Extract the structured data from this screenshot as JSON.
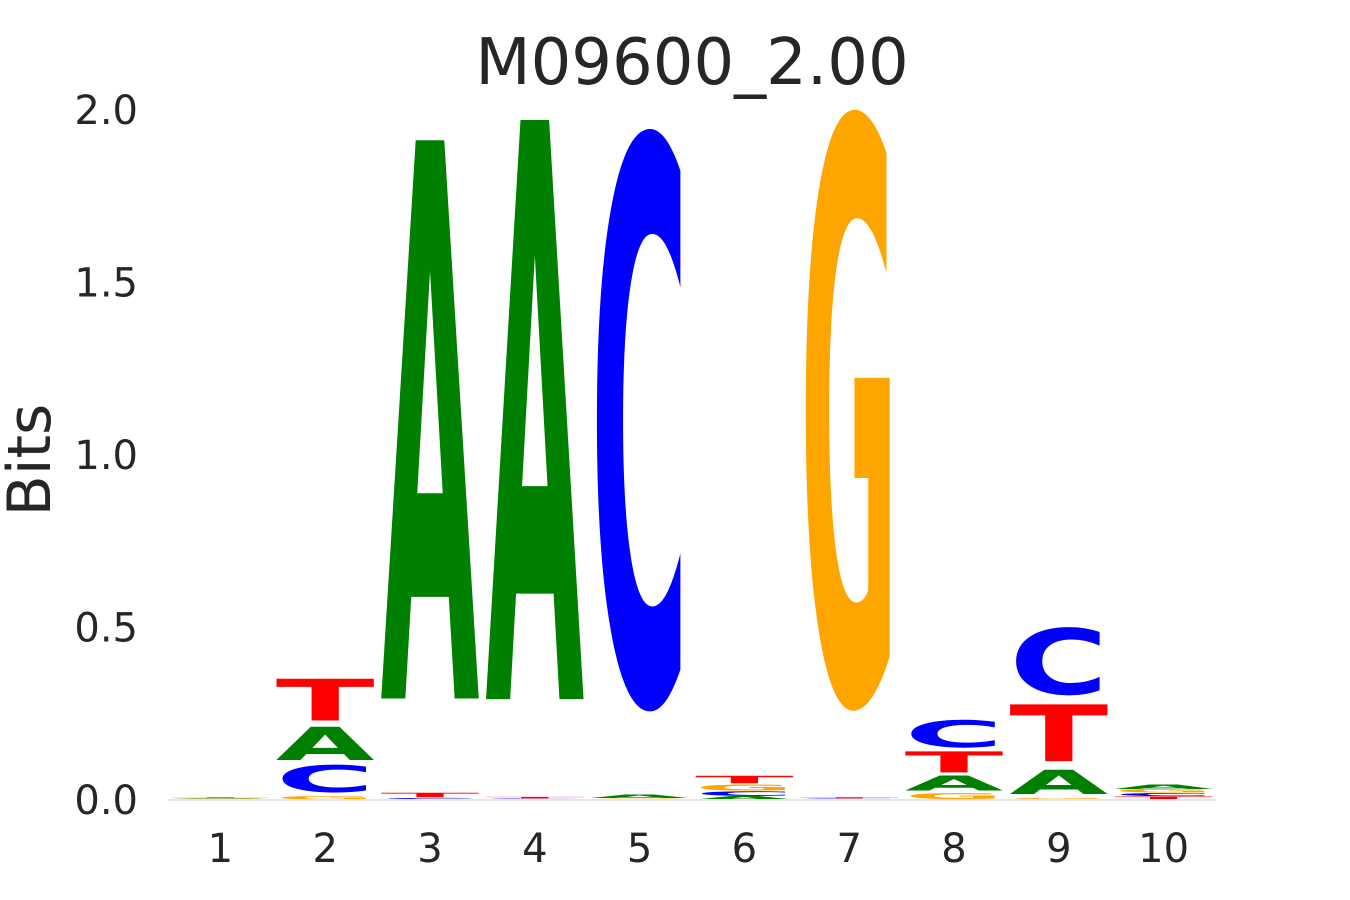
{
  "chart_data": {
    "type": "sequence-logo",
    "title": "M09600_2.00",
    "xlabel": "",
    "ylabel": "Bits",
    "ylim": [
      0,
      2
    ],
    "y_ticks": [
      "0.0",
      "0.5",
      "1.0",
      "1.5",
      "2.0"
    ],
    "x_ticks": [
      "1",
      "2",
      "3",
      "4",
      "5",
      "6",
      "7",
      "8",
      "9",
      "10"
    ],
    "grid": false,
    "colors": {
      "A": "#008000",
      "C": "#0000ff",
      "G": "#ffa500",
      "T": "#ff0000"
    },
    "positions": [
      {
        "position": 1,
        "letters": [
          {
            "base": "C",
            "bits": 0.002
          },
          {
            "base": "A",
            "bits": 0.002
          },
          {
            "base": "G",
            "bits": 0.002
          },
          {
            "base": "T",
            "bits": 0.002
          }
        ]
      },
      {
        "position": 2,
        "letters": [
          {
            "base": "G",
            "bits": 0.01
          },
          {
            "base": "C",
            "bits": 0.09
          },
          {
            "base": "A",
            "bits": 0.11
          },
          {
            "base": "T",
            "bits": 0.14
          }
        ]
      },
      {
        "position": 3,
        "letters": [
          {
            "base": "G",
            "bits": 0.003
          },
          {
            "base": "C",
            "bits": 0.003
          },
          {
            "base": "T",
            "bits": 0.015
          },
          {
            "base": "A",
            "bits": 1.87
          }
        ]
      },
      {
        "position": 4,
        "letters": [
          {
            "base": "G",
            "bits": 0.002
          },
          {
            "base": "C",
            "bits": 0.002
          },
          {
            "base": "T",
            "bits": 0.005
          },
          {
            "base": "A",
            "bits": 1.94
          }
        ]
      },
      {
        "position": 5,
        "letters": [
          {
            "base": "T",
            "bits": 0.002
          },
          {
            "base": "G",
            "bits": 0.002
          },
          {
            "base": "A",
            "bits": 0.01
          },
          {
            "base": "C",
            "bits": 1.88
          }
        ]
      },
      {
        "position": 6,
        "letters": [
          {
            "base": "A",
            "bits": 0.01
          },
          {
            "base": "C",
            "bits": 0.015
          },
          {
            "base": "G",
            "bits": 0.02
          },
          {
            "base": "T",
            "bits": 0.025
          }
        ]
      },
      {
        "position": 7,
        "letters": [
          {
            "base": "A",
            "bits": 0.002
          },
          {
            "base": "C",
            "bits": 0.002
          },
          {
            "base": "T",
            "bits": 0.004
          },
          {
            "base": "G",
            "bits": 1.94
          }
        ]
      },
      {
        "position": 8,
        "letters": [
          {
            "base": "G",
            "bits": 0.02
          },
          {
            "base": "A",
            "bits": 0.05
          },
          {
            "base": "T",
            "bits": 0.07
          },
          {
            "base": "C",
            "bits": 0.09
          }
        ]
      },
      {
        "position": 9,
        "letters": [
          {
            "base": "G",
            "bits": 0.005
          },
          {
            "base": "A",
            "bits": 0.08
          },
          {
            "base": "T",
            "bits": 0.19
          },
          {
            "base": "C",
            "bits": 0.22
          }
        ]
      },
      {
        "position": 10,
        "letters": [
          {
            "base": "T",
            "bits": 0.01
          },
          {
            "base": "C",
            "bits": 0.01
          },
          {
            "base": "G",
            "bits": 0.01
          },
          {
            "base": "A",
            "bits": 0.015
          }
        ]
      }
    ]
  }
}
